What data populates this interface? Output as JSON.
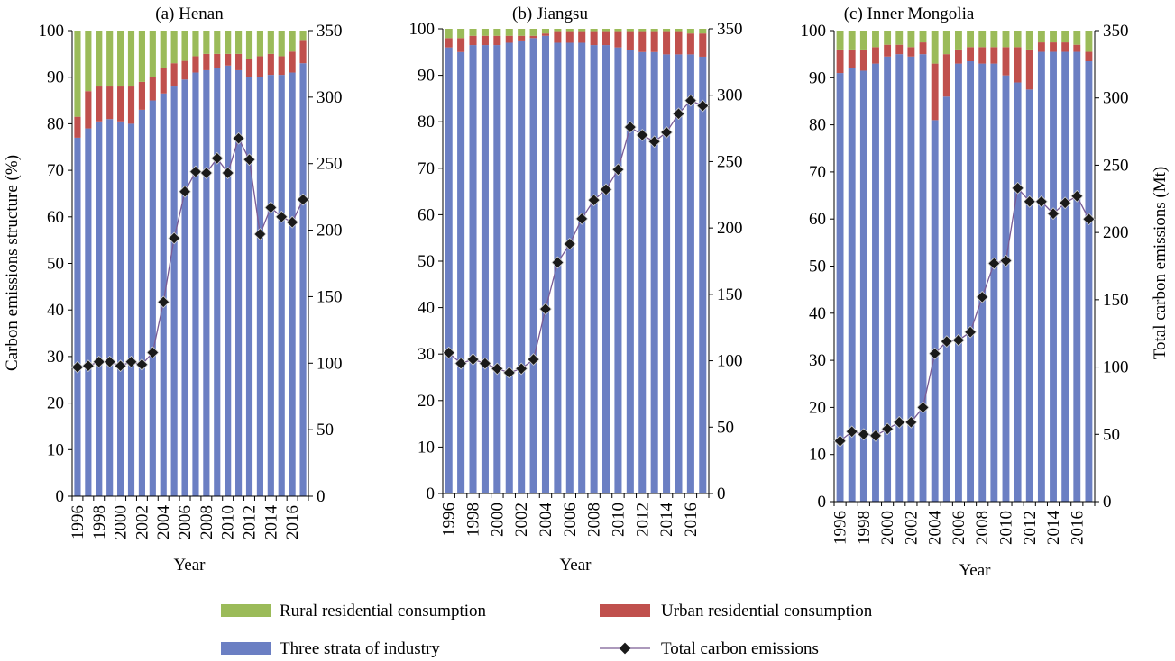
{
  "legend": {
    "rural": "Rural residential consumption",
    "urban": "Urban residential consumption",
    "industry": "Three strata of industry",
    "total": "Total carbon emissions"
  },
  "colors": {
    "rural": "#9bbb59",
    "urban": "#c0504d",
    "industry": "#6b7fc3",
    "line": "#7a5c95",
    "marker": "#1a1a1a"
  },
  "chart_data": [
    {
      "type": "bar",
      "title": "(a) Henan",
      "stacked": true,
      "xlabel": "Year",
      "ylabel": "Carbon emissions structure (%)",
      "y2label": "",
      "ylim": [
        0,
        100
      ],
      "y2lim": [
        0,
        350
      ],
      "years": [
        1996,
        1997,
        1998,
        1999,
        2000,
        2001,
        2002,
        2003,
        2004,
        2005,
        2006,
        2007,
        2008,
        2009,
        2010,
        2011,
        2012,
        2013,
        2014,
        2015,
        2016,
        2017
      ],
      "xtick_labels": [
        "1996",
        "1998",
        "2000",
        "2002",
        "2004",
        "2006",
        "2008",
        "2010",
        "2012",
        "2014",
        "2016"
      ],
      "yticks": [
        "0",
        "10",
        "20",
        "30",
        "40",
        "50",
        "60",
        "70",
        "80",
        "90",
        "100"
      ],
      "y2ticks": [
        "0",
        "50",
        "100",
        "150",
        "200",
        "250",
        "300",
        "350"
      ],
      "series": [
        {
          "name": "Three strata of industry",
          "key": "industry",
          "values": [
            77,
            79,
            80.5,
            81,
            80.5,
            80,
            83,
            85,
            86.5,
            88,
            89.5,
            91,
            91.5,
            92,
            92.5,
            91.5,
            90,
            90,
            90.5,
            90.5,
            91,
            93
          ]
        },
        {
          "name": "Urban residential consumption",
          "key": "urban",
          "values": [
            4.5,
            8,
            7.5,
            7,
            7.5,
            8,
            6,
            5,
            5.5,
            5,
            4,
            3.5,
            3.5,
            3,
            2.5,
            3.5,
            4,
            4.5,
            4.5,
            4,
            4.5,
            5
          ]
        },
        {
          "name": "Rural residential consumption",
          "key": "rural",
          "values": [
            18.5,
            13,
            12,
            12,
            12,
            12,
            11,
            10,
            8,
            7,
            6.5,
            5.5,
            5,
            5,
            5,
            5,
            6,
            5.5,
            5,
            5.5,
            4.5,
            2
          ]
        }
      ],
      "line": {
        "name": "Total carbon emissions",
        "values": [
          97,
          98,
          101,
          101,
          98,
          101,
          99,
          108,
          146,
          194,
          229,
          244,
          243,
          254,
          243,
          269,
          253,
          197,
          217,
          210,
          206,
          223
        ]
      }
    },
    {
      "type": "bar",
      "title": "(b)  Jiangsu",
      "stacked": true,
      "xlabel": "Year",
      "ylabel": "",
      "y2label": "",
      "ylim": [
        0,
        100
      ],
      "y2lim": [
        0,
        350
      ],
      "years": [
        1996,
        1997,
        1998,
        1999,
        2000,
        2001,
        2002,
        2003,
        2004,
        2005,
        2006,
        2007,
        2008,
        2009,
        2010,
        2011,
        2012,
        2013,
        2014,
        2015,
        2016,
        2017
      ],
      "xtick_labels": [
        "1996",
        "1998",
        "2000",
        "2002",
        "2004",
        "2006",
        "2008",
        "2010",
        "2012",
        "2014",
        "2016"
      ],
      "yticks": [
        "0",
        "10",
        "20",
        "30",
        "40",
        "50",
        "60",
        "70",
        "80",
        "90",
        "100"
      ],
      "y2ticks": [
        "0",
        "50",
        "100",
        "150",
        "200",
        "250",
        "300",
        "350"
      ],
      "series": [
        {
          "name": "Three strata of industry",
          "key": "industry",
          "values": [
            96,
            95,
            96.5,
            96.5,
            96.5,
            97,
            97.5,
            98,
            98.5,
            97,
            97,
            97,
            96.5,
            96.5,
            96,
            95.5,
            95,
            95,
            94.5,
            94.5,
            94.5,
            94
          ]
        },
        {
          "name": "Urban residential consumption",
          "key": "urban",
          "values": [
            2,
            3,
            2,
            2,
            2,
            1.5,
            1,
            0.5,
            0.5,
            2.5,
            2.5,
            2.5,
            3,
            3,
            3.5,
            4,
            4.5,
            4.5,
            5,
            5,
            4.5,
            5
          ]
        },
        {
          "name": "Rural residential consumption",
          "key": "rural",
          "values": [
            2,
            2,
            1.5,
            1.5,
            1.5,
            1.5,
            1.5,
            1.5,
            1,
            0.5,
            0.5,
            0.5,
            0.5,
            0.5,
            0.5,
            0.5,
            0.5,
            0.5,
            0.5,
            0.5,
            1,
            1
          ]
        }
      ],
      "line": {
        "name": "Total carbon emissions",
        "values": [
          106,
          98,
          101,
          98,
          94,
          91,
          94,
          101,
          139,
          174,
          188,
          207,
          221,
          229,
          244,
          276,
          270,
          265,
          272,
          286,
          296,
          292
        ]
      }
    },
    {
      "type": "bar",
      "title": "(c) Inner Mongolia",
      "stacked": true,
      "xlabel": "Year",
      "ylabel": "",
      "y2label": "Total carbon emissions (Mt)",
      "ylim": [
        0,
        100
      ],
      "y2lim": [
        0,
        350
      ],
      "years": [
        1996,
        1997,
        1998,
        1999,
        2000,
        2001,
        2002,
        2003,
        2004,
        2005,
        2006,
        2007,
        2008,
        2009,
        2010,
        2011,
        2012,
        2013,
        2014,
        2015,
        2016,
        2017
      ],
      "xtick_labels": [
        "1996",
        "1998",
        "2000",
        "2002",
        "2004",
        "2006",
        "2008",
        "2010",
        "2012",
        "2014",
        "2016"
      ],
      "yticks": [
        "0",
        "10",
        "20",
        "30",
        "40",
        "50",
        "60",
        "70",
        "80",
        "90",
        "100"
      ],
      "y2ticks": [
        "0",
        "50",
        "100",
        "150",
        "200",
        "250",
        "300",
        "350"
      ],
      "series": [
        {
          "name": "Three strata of industry",
          "key": "industry",
          "values": [
            91,
            92,
            91.5,
            93,
            94.5,
            95,
            94.5,
            95,
            81,
            86,
            93,
            93.5,
            93,
            93,
            90.5,
            89,
            87.5,
            95.5,
            95.5,
            95.5,
            95.5,
            93.5
          ]
        },
        {
          "name": "Urban residential consumption",
          "key": "urban",
          "values": [
            5,
            4,
            4.5,
            3.5,
            2.5,
            2,
            2,
            2.5,
            12,
            9,
            3,
            3,
            3.5,
            3.5,
            6,
            7.5,
            8.5,
            2,
            2,
            2,
            1.5,
            2
          ]
        },
        {
          "name": "Rural residential consumption",
          "key": "rural",
          "values": [
            4,
            4,
            4,
            3.5,
            3,
            3,
            3.5,
            2.5,
            7,
            5,
            4,
            3.5,
            3.5,
            3.5,
            3.5,
            3.5,
            4,
            2.5,
            2.5,
            2.5,
            3,
            4.5
          ]
        }
      ],
      "line": {
        "name": "Total carbon emissions",
        "values": [
          45,
          52,
          50,
          49,
          54,
          59,
          59,
          70,
          110,
          119,
          120,
          126,
          152,
          177,
          179,
          233,
          223,
          223,
          214,
          222,
          227,
          210
        ]
      }
    }
  ]
}
